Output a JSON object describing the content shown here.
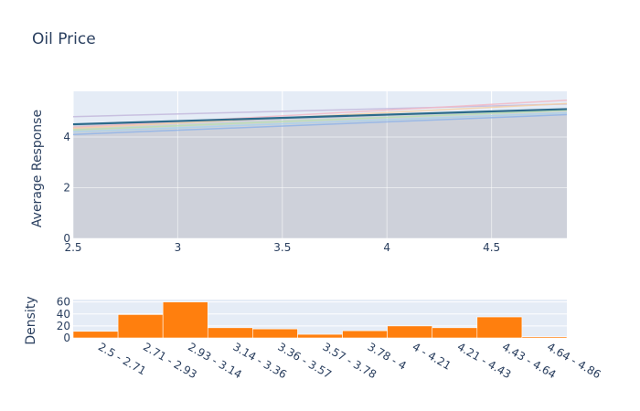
{
  "title": "Oil Price",
  "chart_data": [
    {
      "type": "line",
      "ylabel": "Average Response",
      "xlabel": "",
      "xlim": [
        2.5,
        4.86
      ],
      "ylim": [
        0,
        5.8
      ],
      "x_ticks": [
        2.5,
        3,
        3.5,
        4,
        4.5
      ],
      "x_tick_labels": [
        "2.5",
        "3",
        "3.5",
        "4",
        "4.5"
      ],
      "y_ticks": [
        0,
        2,
        4
      ],
      "y_tick_labels": [
        "0",
        "2",
        "4"
      ],
      "grid": true,
      "x": [
        2.5,
        4.86
      ],
      "series": [
        {
          "values": [
            4.5,
            5.1
          ],
          "color": "#2b6a8b",
          "highlight": true
        },
        {
          "values": [
            4.8,
            5.3
          ],
          "color": "#c3b8dc"
        },
        {
          "values": [
            4.38,
            5.45
          ],
          "color": "#f2b8c6"
        },
        {
          "values": [
            4.34,
            5.32
          ],
          "color": "#f4d0a4"
        },
        {
          "values": [
            4.28,
            5.05
          ],
          "color": "#b9e0b0"
        },
        {
          "values": [
            4.2,
            4.95
          ],
          "color": "#a9d2ea"
        },
        {
          "values": [
            4.1,
            4.88
          ],
          "color": "#8fb4e8"
        }
      ],
      "band_color": "#ccd0d8"
    },
    {
      "type": "bar",
      "ylabel": "Density",
      "categories": [
        "2.5 - 2.71",
        "2.71 - 2.93",
        "2.93 - 3.14",
        "3.14 - 3.36",
        "3.36 - 3.57",
        "3.57 - 3.78",
        "3.78 - 4",
        "4 - 4.21",
        "4.21 - 4.43",
        "4.43 - 4.64",
        "4.64 - 4.86"
      ],
      "values": [
        11,
        39,
        60,
        17,
        15,
        6,
        12,
        20,
        17,
        35,
        2
      ],
      "ylim": [
        0,
        64
      ],
      "y_ticks": [
        0,
        20,
        40,
        60
      ],
      "y_tick_labels": [
        "0",
        "20",
        "40",
        "60"
      ],
      "bar_color": "#ff7f0e",
      "grid": true
    }
  ]
}
